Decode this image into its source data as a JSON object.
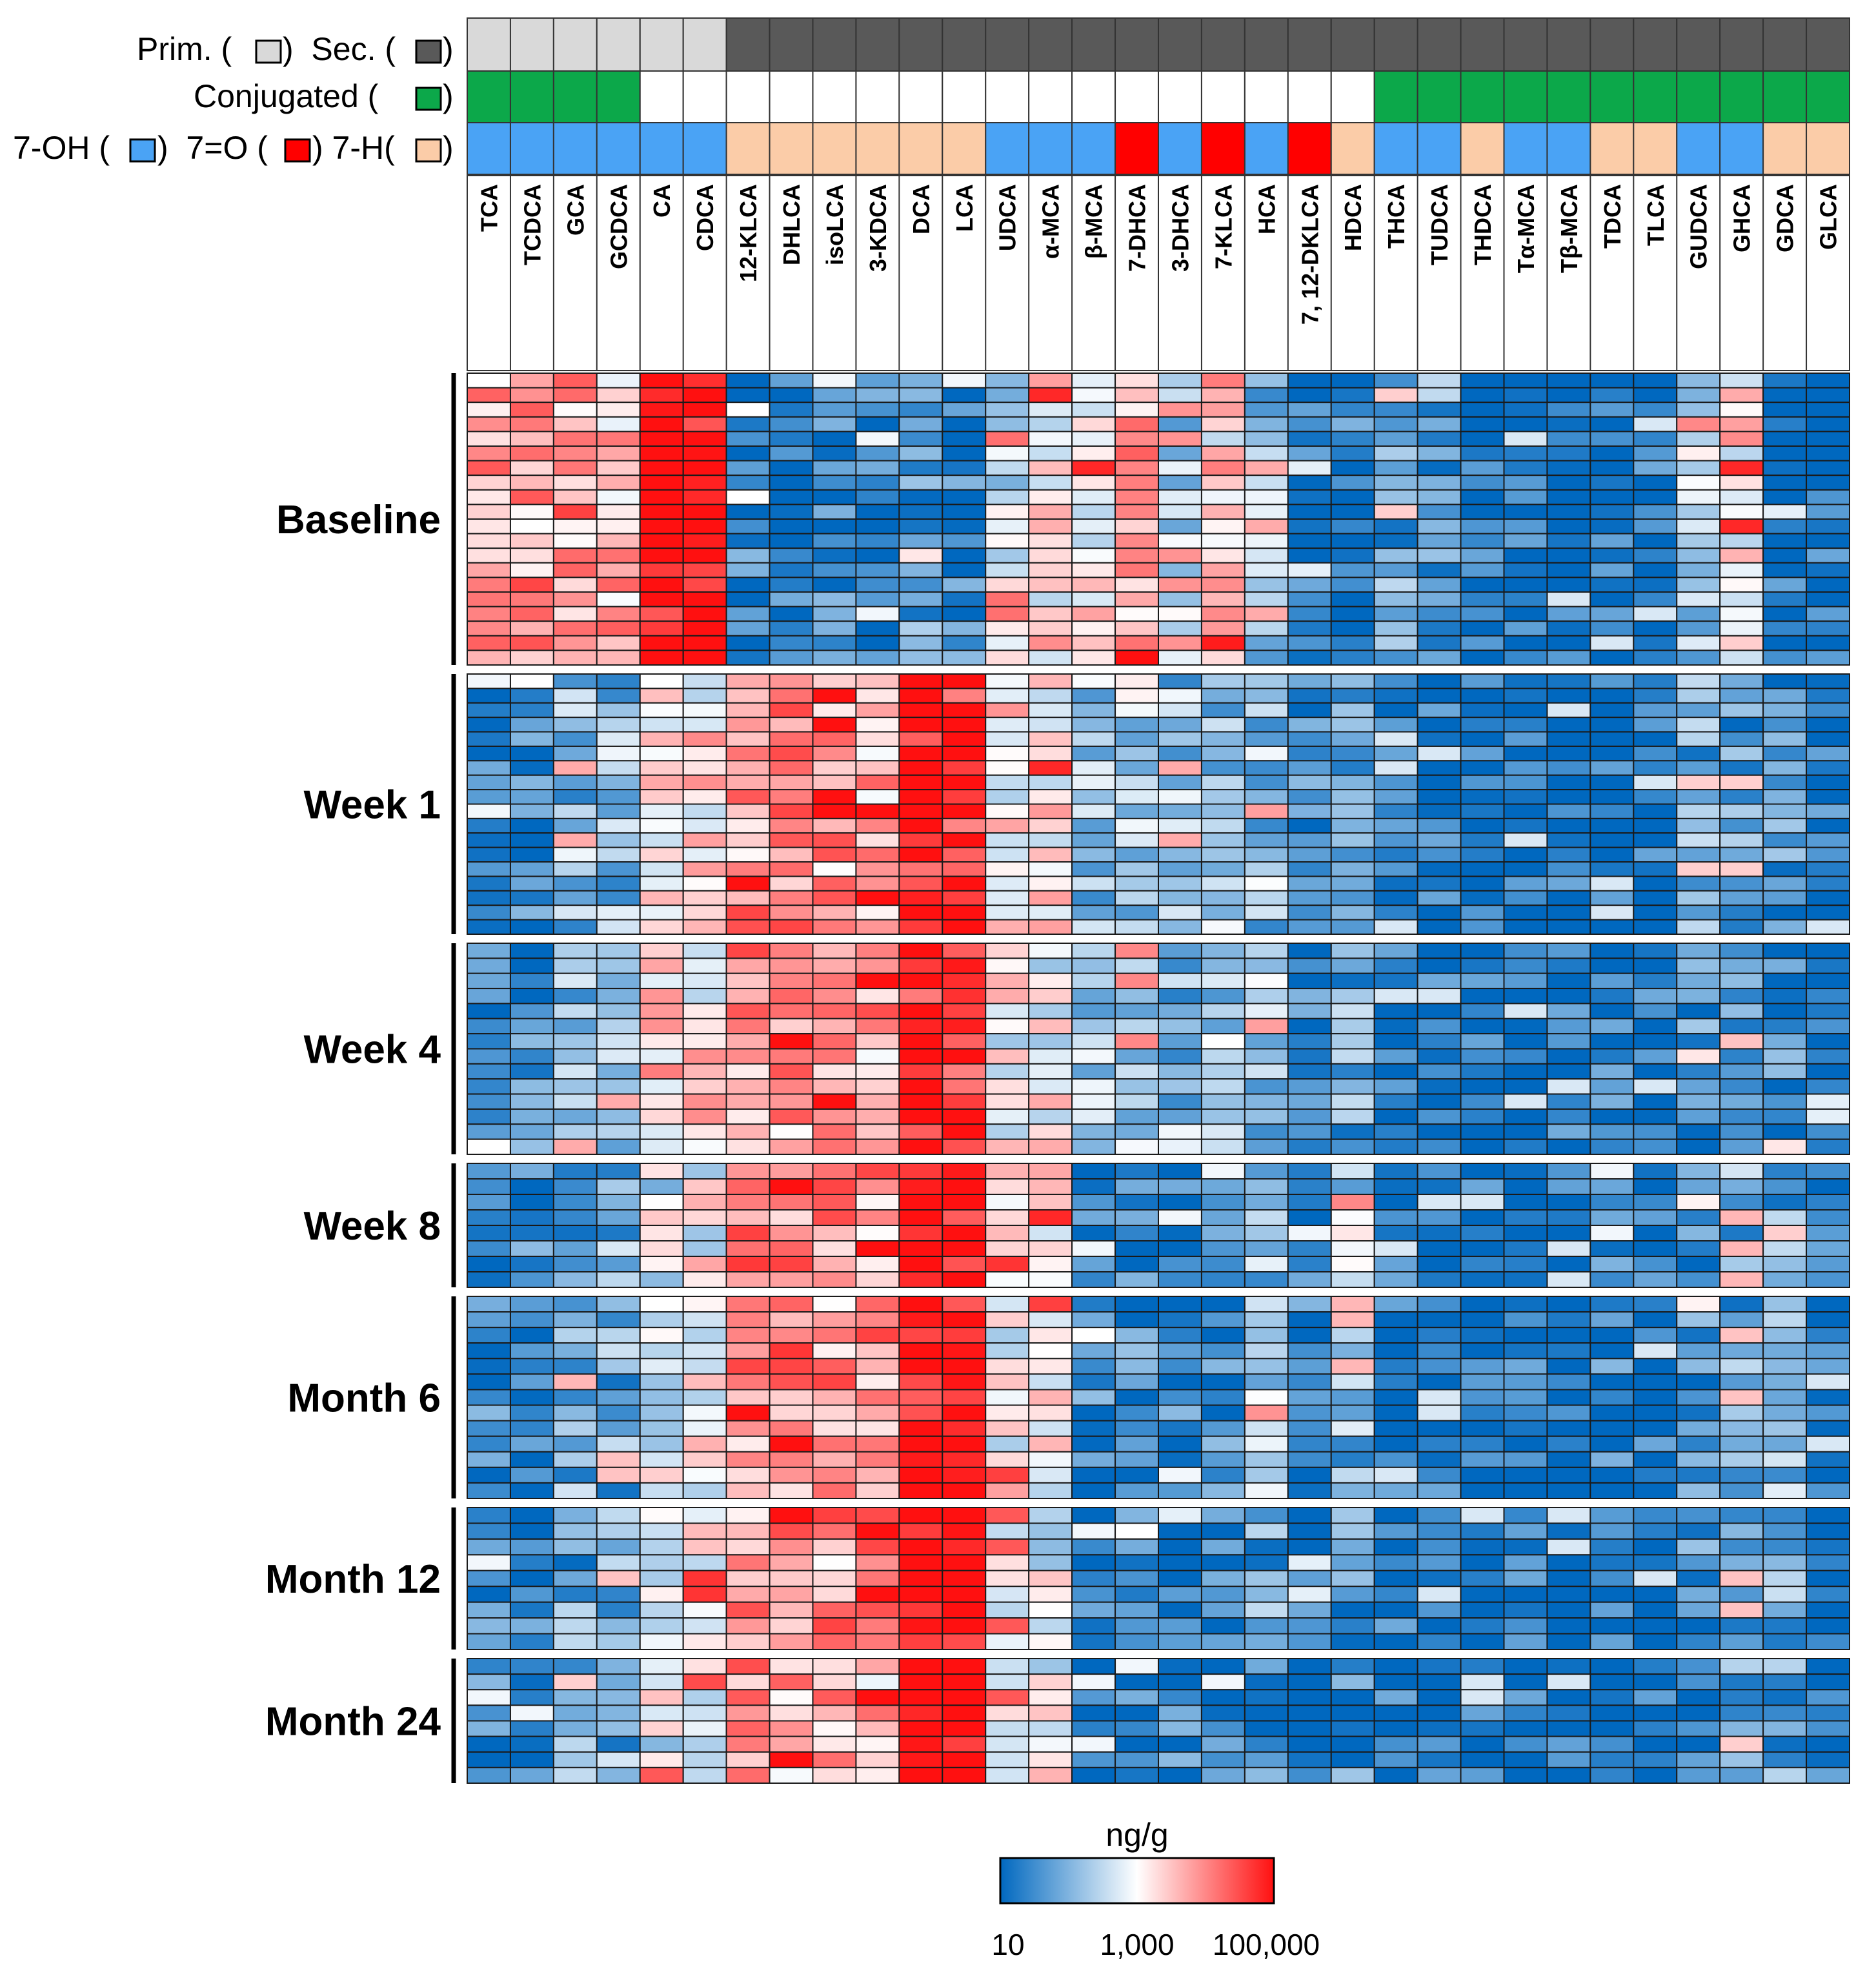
{
  "chart_data": {
    "type": "heatmap",
    "title": "",
    "columns": [
      "TCA",
      "TCDCA",
      "GCA",
      "GCDCA",
      "CA",
      "CDCA",
      "12-KLCA",
      "DHLCA",
      "isoLCA",
      "3-KDCA",
      "DCA",
      "LCA",
      "UDCA",
      "α-MCA",
      "β-MCA",
      "7-DHCA",
      "3-DHCA",
      "7-KLCA",
      "HCA",
      "7, 12-DKLCA",
      "HDCA",
      "THCA",
      "TUDCA",
      "THDCA",
      "Tα-MCA",
      "Tβ-MCA",
      "TDCA",
      "TLCA",
      "GUDCA",
      "GHCA",
      "GDCA",
      "GLCA"
    ],
    "annotations": {
      "legend_labels": {
        "primary_secondary": [
          "Prim. (",
          ")  Sec. (",
          ")"
        ],
        "conjugated": [
          "Conjugated (",
          ")"
        ],
        "position7": [
          "7-OH (",
          ")  7=O (",
          ") 7-H(",
          ")"
        ]
      },
      "primary_secondary": [
        "P",
        "P",
        "P",
        "P",
        "P",
        "P",
        "S",
        "S",
        "S",
        "S",
        "S",
        "S",
        "S",
        "S",
        "S",
        "S",
        "S",
        "S",
        "S",
        "S",
        "S",
        "S",
        "S",
        "S",
        "S",
        "S",
        "S",
        "S",
        "S",
        "S",
        "S",
        "S"
      ],
      "conjugated": [
        1,
        1,
        1,
        1,
        0,
        0,
        0,
        0,
        0,
        0,
        0,
        0,
        0,
        0,
        0,
        0,
        0,
        0,
        0,
        0,
        0,
        1,
        1,
        1,
        1,
        1,
        1,
        1,
        1,
        1,
        1,
        1
      ],
      "position7": [
        "OH",
        "OH",
        "OH",
        "OH",
        "OH",
        "OH",
        "H",
        "H",
        "H",
        "H",
        "H",
        "H",
        "OH",
        "OH",
        "OH",
        "O",
        "OH",
        "O",
        "OH",
        "O",
        "H",
        "OH",
        "OH",
        "H",
        "OH",
        "OH",
        "H",
        "H",
        "OH",
        "OH",
        "H",
        "H"
      ],
      "colors": {
        "primary": "#d9d9d9",
        "secondary": "#595959",
        "conjugated": "#0ca84a",
        "unconjugated": "#ffffff",
        "7-OH": "#4aa3f5",
        "7=O": "#ff0000",
        "7-H": "#fbcca8"
      }
    },
    "groups": [
      {
        "label": "Baseline",
        "rows": 20
      },
      {
        "label": "Week 1",
        "rows": 18
      },
      {
        "label": "Week 4",
        "rows": 14
      },
      {
        "label": "Week 8",
        "rows": 8
      },
      {
        "label": "Month 6",
        "rows": 13
      },
      {
        "label": "Month 12",
        "rows": 9
      },
      {
        "label": "Month 24",
        "rows": 8
      }
    ],
    "group_means_log10": {
      "Baseline": [
        3.8,
        3.8,
        3.8,
        3.6,
        5.2,
        5.2,
        1.4,
        1.2,
        1.3,
        1.3,
        1.6,
        1.3,
        2.6,
        3.2,
        3.2,
        3.8,
        2.3,
        3.3,
        2.1,
        1.2,
        1.2,
        1.8,
        1.8,
        1.1,
        1.1,
        1.1,
        1.1,
        1.1,
        2.4,
        3.2,
        1.2,
        1.1
      ],
      "Week 1": [
        1.3,
        1.4,
        2.1,
        2.1,
        3.1,
        3.2,
        3.8,
        3.8,
        3.8,
        3.6,
        4.8,
        4.8,
        3.1,
        3.2,
        2.2,
        2.4,
        2.1,
        2.2,
        2.2,
        1.4,
        1.7,
        1.1,
        1.1,
        1.1,
        1.1,
        1.1,
        1.1,
        1.1,
        1.8,
        1.8,
        1.5,
        1.1
      ],
      "Week 4": [
        1.4,
        1.5,
        2.1,
        2.1,
        3.3,
        3.2,
        3.9,
        3.8,
        3.8,
        3.7,
        4.9,
        4.8,
        2.9,
        3.0,
        2.3,
        2.4,
        2.1,
        2.3,
        2.2,
        1.4,
        1.8,
        1.1,
        1.1,
        1.1,
        1.1,
        1.1,
        1.2,
        1.1,
        1.6,
        1.9,
        1.6,
        1.2
      ],
      "Week 8": [
        1.3,
        1.4,
        1.9,
        1.9,
        2.7,
        3.0,
        4.0,
        3.9,
        4.0,
        3.8,
        5.2,
        5.1,
        3.1,
        3.2,
        1.3,
        1.3,
        1.3,
        1.3,
        2.1,
        1.3,
        2.4,
        1.1,
        1.1,
        1.1,
        1.1,
        1.1,
        1.3,
        1.1,
        1.5,
        2.0,
        1.8,
        1.1
      ],
      "Month 6": [
        1.3,
        1.4,
        2.0,
        1.9,
        2.8,
        3.0,
        3.9,
        3.9,
        3.8,
        3.8,
        5.1,
        5.0,
        3.0,
        3.0,
        1.4,
        1.4,
        1.3,
        1.4,
        2.3,
        1.3,
        2.0,
        1.1,
        1.1,
        1.1,
        1.1,
        1.1,
        1.3,
        1.1,
        1.5,
        1.9,
        2.0,
        1.1
      ],
      "Month 12": [
        1.3,
        1.3,
        1.8,
        1.9,
        2.8,
        3.1,
        3.8,
        3.8,
        3.8,
        3.8,
        5.2,
        5.2,
        2.8,
        2.9,
        1.3,
        1.4,
        1.2,
        1.3,
        1.8,
        1.2,
        1.5,
        1.1,
        1.1,
        1.1,
        1.1,
        1.1,
        1.3,
        1.1,
        1.5,
        1.9,
        1.8,
        1.1
      ],
      "Month 24": [
        1.3,
        1.3,
        1.8,
        1.9,
        2.8,
        2.9,
        3.8,
        3.7,
        3.8,
        3.6,
        5.3,
        5.3,
        2.8,
        3.0,
        1.3,
        1.3,
        1.3,
        1.3,
        1.7,
        1.2,
        1.5,
        1.1,
        1.1,
        1.1,
        1.1,
        1.1,
        1.3,
        1.1,
        1.5,
        1.8,
        1.7,
        1.1
      ]
    },
    "colorbar": {
      "title": "ng/g",
      "scale": "log10",
      "range": [
        10,
        100000
      ],
      "ticks": [
        "10",
        "1,000",
        "100,000"
      ],
      "colors": [
        "#0068bf",
        "#ffffff",
        "#ff1010"
      ]
    }
  }
}
